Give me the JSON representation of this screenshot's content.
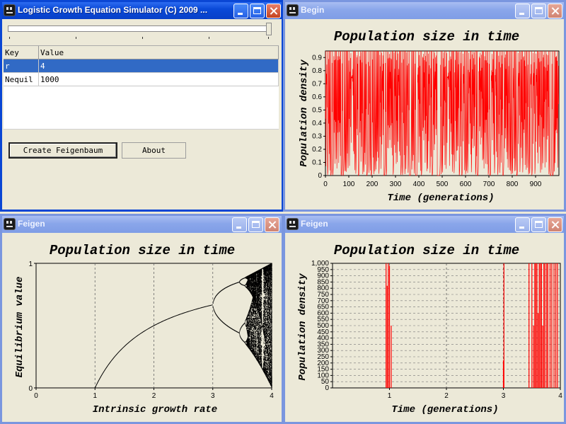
{
  "main_window": {
    "title": "Logistic Growth Equation Simulator (C) 2009 ...",
    "slider": {
      "value_fraction": 1.0
    },
    "table": {
      "headers": [
        "Key",
        "Value"
      ],
      "rows": [
        [
          "r",
          "4"
        ],
        [
          "Nequil",
          "1000"
        ]
      ],
      "selected_row": 0
    },
    "buttons": {
      "feigenbaum": "Create Feigenbaum",
      "about": "About"
    }
  },
  "begin_window": {
    "title": "Begin",
    "chart_data": {
      "type": "line",
      "title": "Population size in time",
      "xlabel": "Time (generations)",
      "ylabel": "Population density",
      "xlim": [
        0,
        1000
      ],
      "ylim": [
        0,
        0.95
      ],
      "xticks": [
        "0",
        "100",
        "200",
        "300",
        "400",
        "500",
        "600",
        "700",
        "800",
        "900"
      ],
      "yticks": [
        "0",
        "0.1",
        "0.2",
        "0.3",
        "0.4",
        "0.5",
        "0.6",
        "0.7",
        "0.8",
        "0.9"
      ],
      "series": [
        {
          "color": "#ff0000",
          "description": "chaotic logistic map r=4, values oscillating between ~0.0 and ~0.98 over 1000 generations"
        }
      ],
      "grid": false
    }
  },
  "feigen_left": {
    "title": "Feigen",
    "chart_data": {
      "type": "scatter",
      "title": "Population size in time",
      "xlabel": "Intrinsic growth rate",
      "ylabel": "Equilibrium value",
      "xlim": [
        0,
        4
      ],
      "ylim": [
        0,
        1
      ],
      "xticks": [
        "0",
        "1",
        "2",
        "3",
        "4"
      ],
      "yticks": [
        "0",
        "1"
      ],
      "series": [
        {
          "color": "#000000",
          "description": "bifurcation diagram: 0 for r<1, equilibrium 1-1/r for 1<r<3, period doubling after r=3, chaos near r=4"
        }
      ],
      "grid": "vertical dashed"
    }
  },
  "feigen_right": {
    "title": "Feigen",
    "chart_data": {
      "type": "line",
      "title": "Population size in time",
      "xlabel": "Time (generations)",
      "ylabel": "Population density",
      "xlim": [
        0,
        4
      ],
      "ylim": [
        0,
        1000
      ],
      "xticks": [
        "1",
        "2",
        "3",
        "4"
      ],
      "yticks": [
        "0",
        "50",
        "100",
        "150",
        "200",
        "250",
        "300",
        "350",
        "400",
        "450",
        "500",
        "550",
        "600",
        "650",
        "700",
        "750",
        "800",
        "850",
        "900",
        "950",
        "1,000"
      ],
      "series": [
        {
          "color": "#ff0000",
          "description": "vertical spikes near x=0.95-1.03, x=3.0, and dense spikes between x=3.45 and x=3.95"
        }
      ],
      "grid": "dashed"
    }
  }
}
